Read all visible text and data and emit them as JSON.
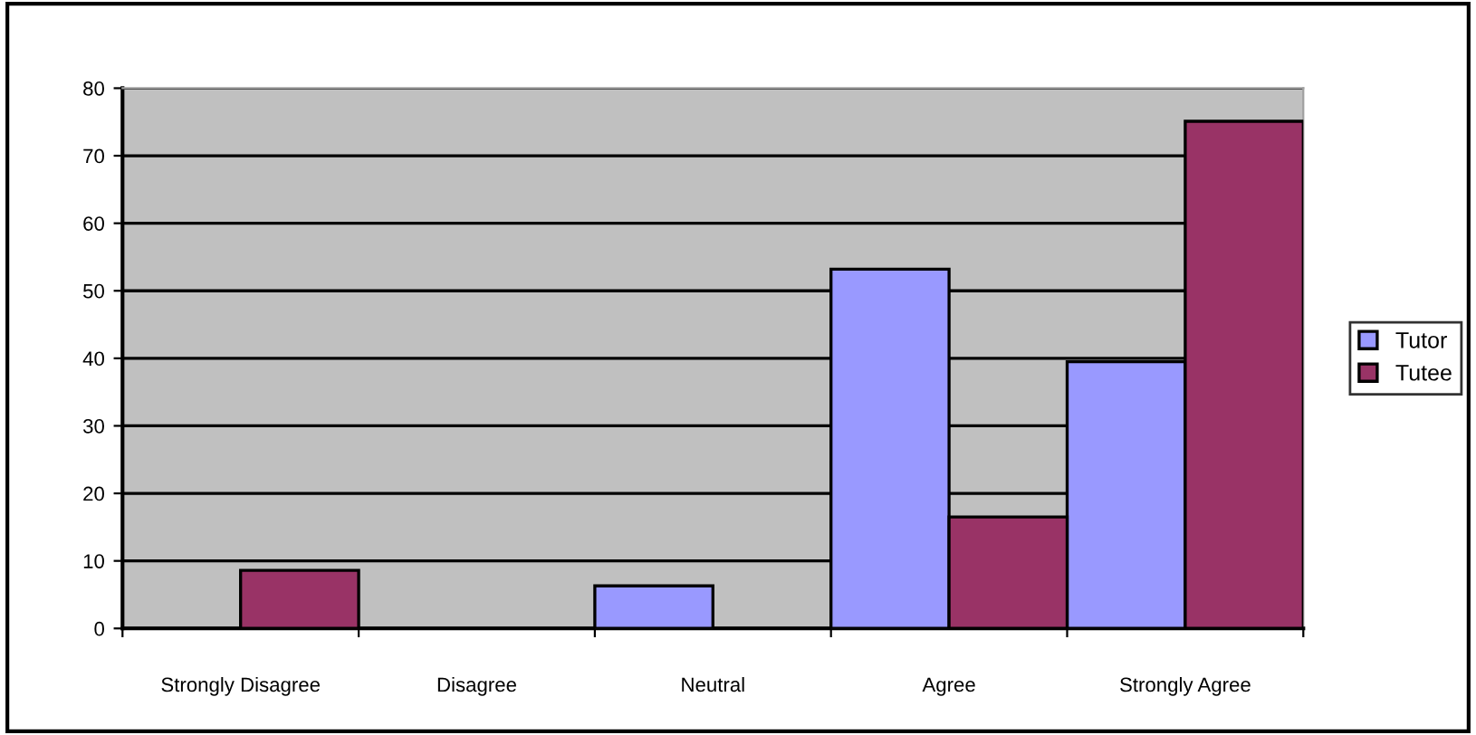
{
  "chart_data": {
    "type": "bar",
    "categories": [
      "Strongly Disagree",
      "Disagree",
      "Neutral",
      "Agree",
      "Strongly Agree"
    ],
    "series": [
      {
        "name": "Tutor",
        "color": "#9999ff",
        "values": [
          null,
          null,
          6.3,
          53.2,
          39.5
        ]
      },
      {
        "name": "Tutee",
        "color": "#993366",
        "values": [
          8.6,
          null,
          null,
          16.5,
          75.1
        ]
      }
    ],
    "ylim": [
      0,
      80
    ],
    "yticks": [
      0,
      10,
      20,
      30,
      40,
      50,
      60,
      70,
      80
    ],
    "grid": "y",
    "legend": "right"
  }
}
